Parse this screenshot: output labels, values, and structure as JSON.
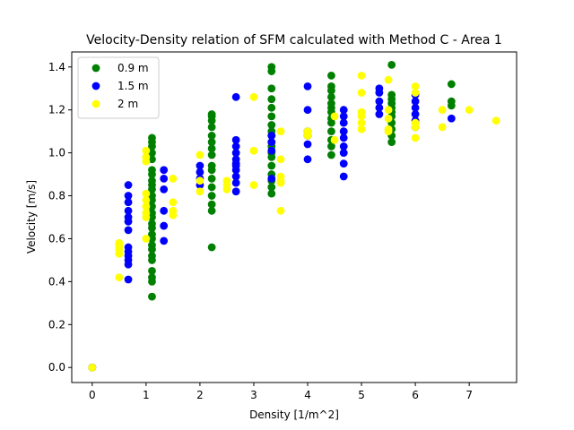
{
  "chart_data": {
    "type": "scatter",
    "title": "Velocity-Density relation of SFM calculated with Method C - Area 1",
    "xlabel": "Density [1/m^2]",
    "ylabel": "Velocity [m/s]",
    "xlim": [
      -0.38,
      7.88
    ],
    "ylim": [
      -0.07,
      1.47
    ],
    "xticks": [
      0,
      1,
      2,
      3,
      4,
      5,
      6,
      7
    ],
    "yticks": [
      0.0,
      0.2,
      0.4,
      0.6,
      0.8,
      1.0,
      1.2,
      1.4
    ],
    "xtick_labels": [
      "0",
      "1",
      "2",
      "3",
      "4",
      "5",
      "6",
      "7"
    ],
    "ytick_labels": [
      "0.0",
      "0.2",
      "0.4",
      "0.6",
      "0.8",
      "1.0",
      "1.2",
      "1.4"
    ],
    "grid": false,
    "legend_position": "top-left",
    "series": [
      {
        "name": "0.9 m",
        "color": "#008000",
        "x": [
          0,
          1.11,
          1.11,
          1.11,
          1.11,
          1.11,
          1.11,
          1.11,
          1.11,
          1.11,
          1.11,
          1.11,
          1.11,
          1.11,
          1.11,
          1.11,
          1.11,
          1.11,
          1.11,
          1.11,
          1.11,
          1.11,
          1.11,
          1.11,
          1.11,
          1.11,
          1.11,
          1.11,
          2.22,
          2.22,
          2.22,
          2.22,
          2.22,
          2.22,
          2.22,
          2.22,
          2.22,
          2.22,
          2.22,
          2.22,
          2.22,
          2.22,
          2.22,
          2.22,
          3.33,
          3.33,
          3.33,
          3.33,
          3.33,
          3.33,
          3.33,
          3.33,
          3.33,
          3.33,
          3.33,
          3.33,
          3.33,
          3.33,
          3.33,
          3.33,
          3.33,
          3.33,
          4.44,
          4.44,
          4.44,
          4.44,
          4.44,
          4.44,
          4.44,
          4.44,
          4.44,
          4.44,
          4.44,
          4.44,
          4.44,
          5.56,
          5.56,
          5.56,
          5.56,
          5.56,
          5.56,
          5.56,
          5.56,
          5.56,
          5.56,
          5.56,
          6.67,
          6.67,
          6.67
        ],
        "y": [
          0.0,
          0.33,
          0.4,
          0.42,
          0.45,
          0.5,
          0.52,
          0.55,
          0.57,
          0.6,
          0.62,
          0.65,
          0.67,
          0.7,
          0.72,
          0.75,
          0.78,
          0.8,
          0.83,
          0.85,
          0.87,
          0.9,
          0.92,
          0.97,
          1.0,
          1.03,
          1.05,
          1.07,
          0.56,
          0.73,
          0.76,
          0.8,
          0.84,
          0.88,
          0.92,
          0.94,
          0.99,
          1.02,
          1.05,
          1.08,
          1.12,
          1.15,
          1.17,
          1.18,
          0.81,
          0.84,
          0.87,
          0.9,
          0.94,
          0.98,
          1.0,
          1.03,
          1.05,
          1.08,
          1.1,
          1.13,
          1.17,
          1.21,
          1.25,
          1.3,
          1.38,
          1.4,
          0.99,
          1.03,
          1.06,
          1.1,
          1.14,
          1.16,
          1.19,
          1.21,
          1.23,
          1.26,
          1.29,
          1.31,
          1.36,
          1.05,
          1.08,
          1.11,
          1.14,
          1.17,
          1.19,
          1.21,
          1.23,
          1.25,
          1.27,
          1.41,
          1.22,
          1.24,
          1.32
        ]
      },
      {
        "name": "1.5 m",
        "color": "#0000ff",
        "x": [
          0,
          0.67,
          0.67,
          0.67,
          0.67,
          0.67,
          0.67,
          0.67,
          0.67,
          0.67,
          0.67,
          0.67,
          0.67,
          0.67,
          1.33,
          1.33,
          1.33,
          1.33,
          1.33,
          1.33,
          2.0,
          2.0,
          2.0,
          2.0,
          2.67,
          2.67,
          2.67,
          2.67,
          2.67,
          2.67,
          2.67,
          2.67,
          2.67,
          2.67,
          2.67,
          3.33,
          3.33,
          3.33,
          3.33,
          4.0,
          4.0,
          4.0,
          4.0,
          4.0,
          4.0,
          4.67,
          4.67,
          4.67,
          4.67,
          4.67,
          4.67,
          4.67,
          4.67,
          4.67,
          5.33,
          5.33,
          5.33,
          5.33,
          5.33,
          6.0,
          6.0,
          6.0,
          6.0,
          6.0,
          6.0,
          6.67
        ],
        "y": [
          0.0,
          0.41,
          0.48,
          0.5,
          0.52,
          0.54,
          0.56,
          0.64,
          0.68,
          0.7,
          0.73,
          0.77,
          0.8,
          0.85,
          0.59,
          0.66,
          0.73,
          0.83,
          0.88,
          0.92,
          0.85,
          0.88,
          0.91,
          0.94,
          0.82,
          0.86,
          0.89,
          0.92,
          0.94,
          0.97,
          1.0,
          1.03,
          1.06,
          1.26,
          0.95,
          0.88,
          1.01,
          1.05,
          1.08,
          0.97,
          1.04,
          1.08,
          1.1,
          1.2,
          1.31,
          0.89,
          0.95,
          1.0,
          1.03,
          1.07,
          1.1,
          1.14,
          1.17,
          1.2,
          1.18,
          1.21,
          1.24,
          1.28,
          1.3,
          1.12,
          1.15,
          1.18,
          1.21,
          1.24,
          1.27,
          1.16
        ]
      },
      {
        "name": "2 m",
        "color": "#ffff00",
        "x": [
          0,
          0.5,
          0.5,
          0.5,
          0.5,
          0.5,
          0.5,
          1.0,
          1.0,
          1.0,
          1.0,
          1.0,
          1.0,
          1.0,
          1.0,
          1.0,
          1.5,
          1.5,
          1.5,
          1.5,
          2.0,
          2.0,
          2.0,
          2.5,
          2.5,
          2.5,
          3.0,
          3.0,
          3.0,
          3.5,
          3.5,
          3.5,
          3.5,
          3.5,
          3.5,
          4.0,
          4.0,
          4.5,
          4.5,
          5.0,
          5.0,
          5.0,
          5.0,
          5.0,
          5.0,
          5.5,
          5.5,
          5.5,
          5.5,
          5.5,
          6.0,
          6.0,
          6.0,
          6.0,
          6.0,
          6.5,
          6.5,
          7.0,
          7.5
        ],
        "y": [
          0.0,
          0.42,
          0.53,
          0.55,
          0.56,
          0.57,
          0.58,
          0.6,
          0.7,
          0.72,
          0.75,
          0.78,
          0.81,
          0.96,
          0.98,
          1.01,
          0.71,
          0.73,
          0.77,
          0.88,
          0.82,
          0.87,
          0.99,
          0.83,
          0.85,
          0.87,
          0.85,
          1.01,
          1.26,
          0.73,
          0.86,
          0.87,
          0.89,
          0.97,
          1.1,
          1.08,
          1.1,
          1.06,
          1.17,
          1.11,
          1.14,
          1.17,
          1.19,
          1.28,
          1.36,
          1.1,
          1.11,
          1.16,
          1.2,
          1.34,
          1.07,
          1.12,
          1.14,
          1.28,
          1.31,
          1.12,
          1.2,
          1.2,
          1.15
        ]
      }
    ]
  }
}
